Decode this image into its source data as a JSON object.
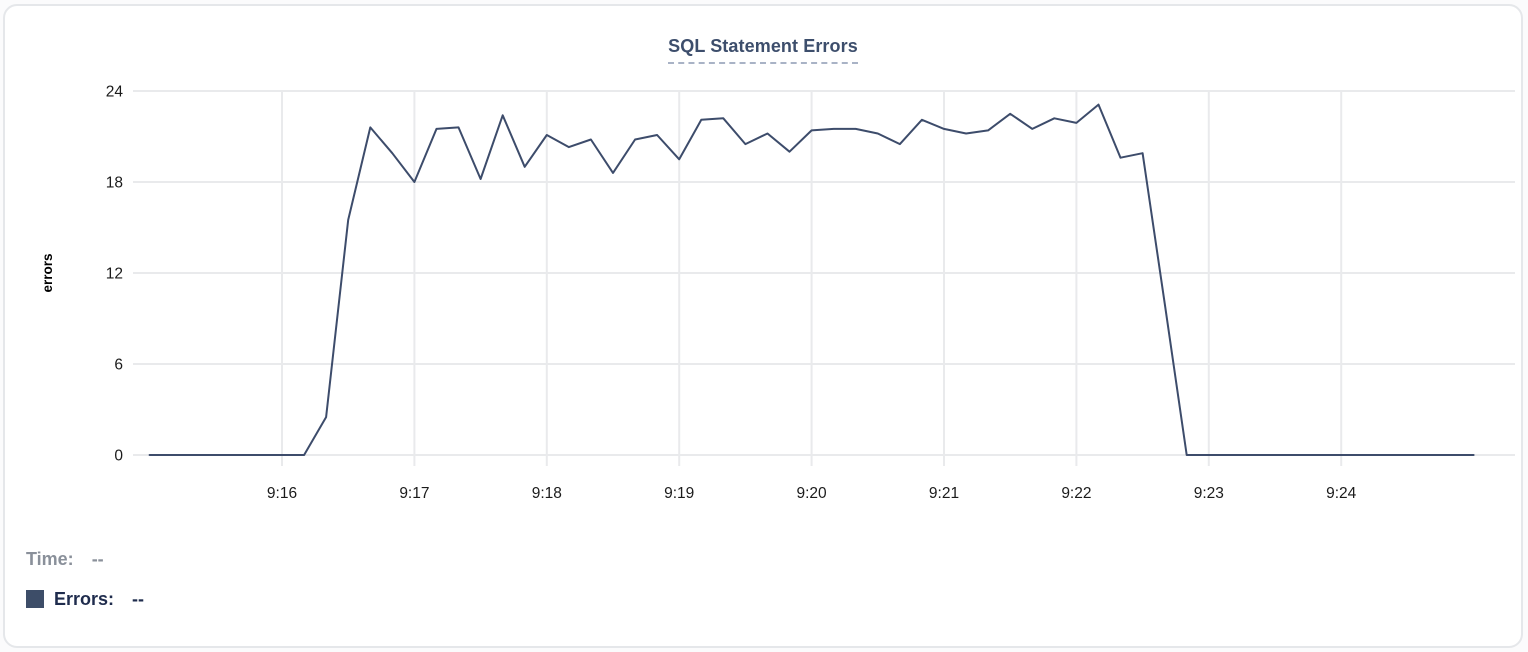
{
  "card": {
    "title": "SQL Statement Errors"
  },
  "tooltip": {
    "time_label": "Time:",
    "time_value": "--",
    "errors_label": "Errors:",
    "errors_value": "--"
  },
  "colors": {
    "line": "#3d4c6b",
    "legend_swatch": "#3d4d68",
    "title_text": "#3d4e6c",
    "title_underline": "#a9b3c6",
    "grid": "#e9eaec",
    "axis_text": "#1b1b1b",
    "ylabel_text": "#000000",
    "muted_text": "#8a909a",
    "dark_text": "#1f2c4d"
  },
  "chart_data": {
    "type": "line",
    "title": "SQL Statement Errors",
    "xlabel": "",
    "ylabel": "errors",
    "ylim": [
      0,
      24
    ],
    "y_ticks": [
      0,
      6,
      12,
      18,
      24
    ],
    "x_ticks": [
      "9:16",
      "9:17",
      "9:18",
      "9:19",
      "9:20",
      "9:21",
      "9:22",
      "9:23",
      "9:24"
    ],
    "x_range": [
      "9:15:00",
      "9:25:00"
    ],
    "grid": true,
    "legend_position": "bottom-left",
    "series": [
      {
        "name": "Errors",
        "x": [
          "9:15:00",
          "9:15:10",
          "9:15:20",
          "9:15:30",
          "9:15:40",
          "9:15:50",
          "9:16:00",
          "9:16:10",
          "9:16:20",
          "9:16:30",
          "9:16:40",
          "9:16:50",
          "9:17:00",
          "9:17:10",
          "9:17:20",
          "9:17:30",
          "9:17:40",
          "9:17:50",
          "9:18:00",
          "9:18:10",
          "9:18:20",
          "9:18:30",
          "9:18:40",
          "9:18:50",
          "9:19:00",
          "9:19:10",
          "9:19:20",
          "9:19:30",
          "9:19:40",
          "9:19:50",
          "9:20:00",
          "9:20:10",
          "9:20:20",
          "9:20:30",
          "9:20:40",
          "9:20:50",
          "9:21:00",
          "9:21:10",
          "9:21:20",
          "9:21:30",
          "9:21:40",
          "9:21:50",
          "9:22:00",
          "9:22:10",
          "9:22:20",
          "9:22:30",
          "9:22:40",
          "9:22:50",
          "9:23:00",
          "9:23:10",
          "9:23:20",
          "9:23:30",
          "9:23:40",
          "9:23:50",
          "9:24:00",
          "9:24:10",
          "9:24:20",
          "9:24:30",
          "9:24:40",
          "9:24:50",
          "9:25:00"
        ],
        "values": [
          0,
          0,
          0,
          0,
          0,
          0,
          0,
          0,
          2.5,
          15.5,
          21.6,
          19.9,
          18,
          21.5,
          21.6,
          18.2,
          22.4,
          19,
          21.1,
          20.3,
          20.8,
          18.6,
          20.8,
          21.1,
          19.5,
          22.1,
          22.2,
          20.5,
          21.2,
          20,
          21.4,
          21.5,
          21.5,
          21.2,
          20.5,
          22.1,
          21.5,
          21.2,
          21.4,
          22.5,
          21.5,
          22.2,
          21.9,
          23.1,
          19.6,
          19.9,
          10,
          0,
          0,
          0,
          0,
          0,
          0,
          0,
          0,
          0,
          0,
          0,
          0,
          0,
          0
        ]
      }
    ]
  }
}
